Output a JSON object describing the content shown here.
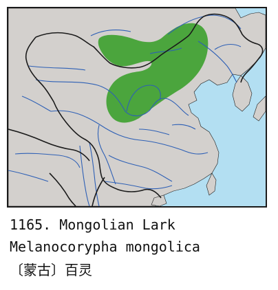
{
  "map": {
    "colors": {
      "land": "#d3d0cd",
      "sea": "#b3dff2",
      "range": "#4ba53d",
      "rivers": "#2d5fb5",
      "border": "#1a1a1a",
      "frame": "#1a1a1a"
    }
  },
  "caption": {
    "number_and_name": "1165. Mongolian Lark",
    "scientific_name": "Melanocorypha mongolica",
    "chinese_name": "〔蒙古〕百灵"
  }
}
